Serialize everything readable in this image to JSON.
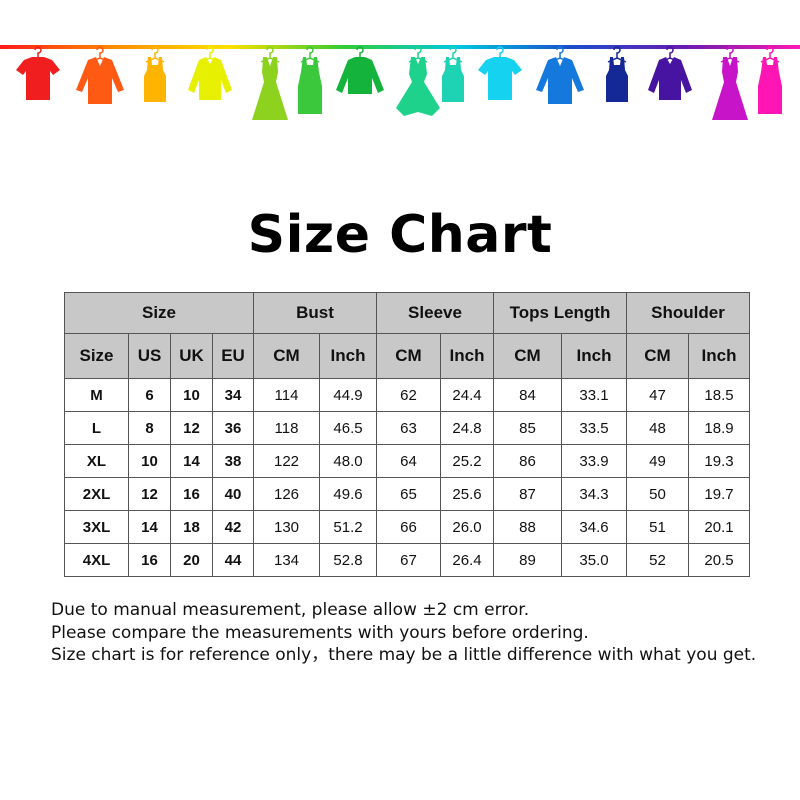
{
  "banner": {
    "rail_colors": [
      "#ff1a1a",
      "#ff8c00",
      "#ffe000",
      "#33cc33",
      "#00c8e0",
      "#1a4dcc",
      "#6a1ab0",
      "#ff1ab4"
    ],
    "garments": [
      {
        "icon": "tshirt-icon",
        "color": "#f01e1e"
      },
      {
        "icon": "shirt-icon",
        "color": "#ff5a14"
      },
      {
        "icon": "tank-top-icon",
        "color": "#ffb400"
      },
      {
        "icon": "cardigan-icon",
        "color": "#e6f000"
      },
      {
        "icon": "dress-icon",
        "color": "#8cd21e"
      },
      {
        "icon": "tank-dress-icon",
        "color": "#3cc83c"
      },
      {
        "icon": "sweater-icon",
        "color": "#14b43c"
      },
      {
        "icon": "ball-gown-icon",
        "color": "#1ed28c"
      },
      {
        "icon": "tank-top-icon",
        "color": "#1ed2b4"
      },
      {
        "icon": "tshirt-icon",
        "color": "#14d2f0"
      },
      {
        "icon": "shirt-icon",
        "color": "#1478dc"
      },
      {
        "icon": "tank-top-icon",
        "color": "#142896"
      },
      {
        "icon": "cardigan-icon",
        "color": "#4614a0"
      },
      {
        "icon": "dress-icon",
        "color": "#c814c8"
      },
      {
        "icon": "tank-dress-icon",
        "color": "#ff14b4"
      }
    ]
  },
  "title": "Size Chart",
  "table": {
    "groups": [
      "Size",
      "Bust",
      "Sleeve",
      "Tops Length",
      "Shoulder"
    ],
    "subheaders": [
      "Size",
      "US",
      "UK",
      "EU",
      "CM",
      "Inch",
      "CM",
      "Inch",
      "CM",
      "Inch",
      "CM",
      "Inch"
    ],
    "rows": [
      [
        "M",
        "6",
        "10",
        "34",
        "114",
        "44.9",
        "62",
        "24.4",
        "84",
        "33.1",
        "47",
        "18.5"
      ],
      [
        "L",
        "8",
        "12",
        "36",
        "118",
        "46.5",
        "63",
        "24.8",
        "85",
        "33.5",
        "48",
        "18.9"
      ],
      [
        "XL",
        "10",
        "14",
        "38",
        "122",
        "48.0",
        "64",
        "25.2",
        "86",
        "33.9",
        "49",
        "19.3"
      ],
      [
        "2XL",
        "12",
        "16",
        "40",
        "126",
        "49.6",
        "65",
        "25.6",
        "87",
        "34.3",
        "50",
        "19.7"
      ],
      [
        "3XL",
        "14",
        "18",
        "42",
        "130",
        "51.2",
        "66",
        "26.0",
        "88",
        "34.6",
        "51",
        "20.1"
      ],
      [
        "4XL",
        "16",
        "20",
        "44",
        "134",
        "52.8",
        "67",
        "26.4",
        "89",
        "35.0",
        "52",
        "20.5"
      ]
    ]
  },
  "notes": [
    "Due to manual measurement, please allow ±2 cm error.",
    "Please compare the measurements with yours before ordering.",
    "Size chart is for reference only，there may be a little difference with what you get."
  ]
}
